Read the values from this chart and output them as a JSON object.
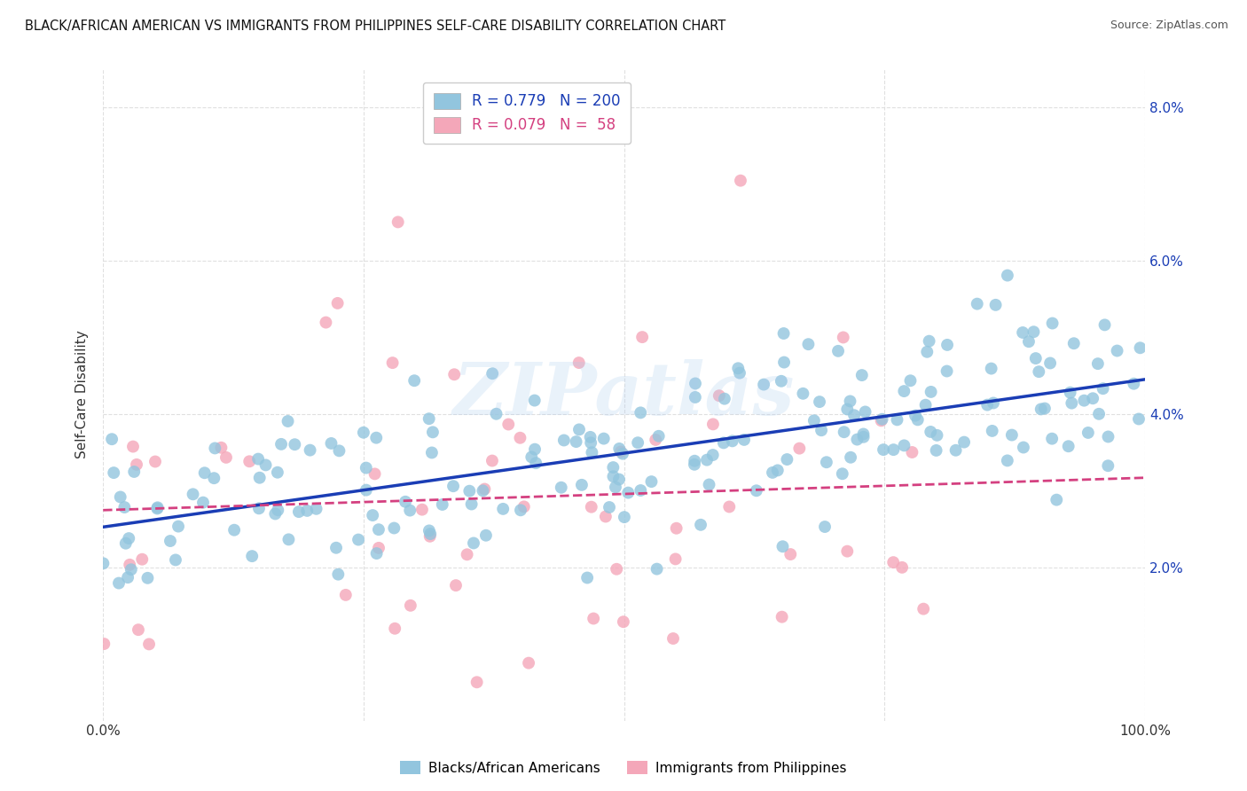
{
  "title": "BLACK/AFRICAN AMERICAN VS IMMIGRANTS FROM PHILIPPINES SELF-CARE DISABILITY CORRELATION CHART",
  "source": "Source: ZipAtlas.com",
  "ylabel_label": "Self-Care Disability",
  "blue_color": "#92c5de",
  "pink_color": "#f4a7b9",
  "blue_line_color": "#1a3db5",
  "pink_line_color": "#d44080",
  "legend_R_blue": "0.779",
  "legend_N_blue": "200",
  "legend_R_pink": "0.079",
  "legend_N_pink": "58",
  "bottom_legend_blue": "Blacks/African Americans",
  "bottom_legend_pink": "Immigrants from Philippines",
  "R_blue": 0.779,
  "N_blue": 200,
  "R_pink": 0.079,
  "N_pink": 58,
  "blue_intercept": 0.025,
  "blue_slope": 0.02,
  "pink_intercept": 0.028,
  "pink_slope": 0.007,
  "blue_noise_scale": 0.006,
  "pink_noise_scale": 0.012,
  "xlim": [
    0.0,
    1.0
  ],
  "ylim": [
    0.0,
    0.085
  ],
  "ytick_vals": [
    0.02,
    0.04,
    0.06,
    0.08
  ],
  "ytick_labels": [
    "2.0%",
    "4.0%",
    "6.0%",
    "8.0%"
  ],
  "watermark_text": "ZIPatlas",
  "background_color": "#ffffff",
  "grid_color": "#dddddd"
}
